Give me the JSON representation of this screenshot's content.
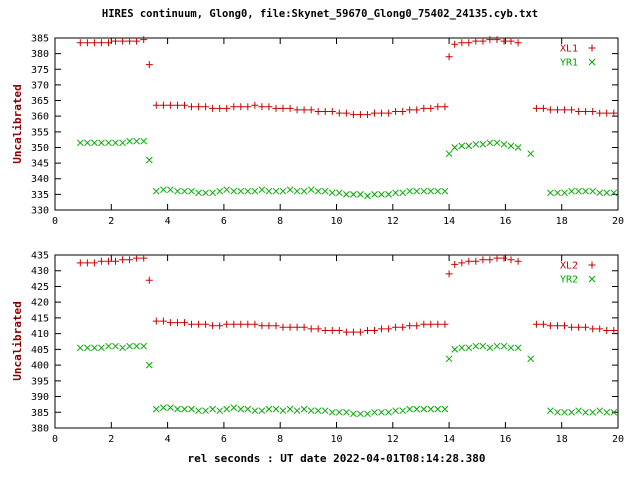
{
  "title": "HIRES continuum, Glong0, file:Skynet_59670_Glong0_75402_24135.cyb.txt",
  "xlabel": "rel seconds : UT date 2022-04-01T08:14:28.380",
  "colors": {
    "series_red": "#cc0000",
    "series_green": "#00aa00",
    "axis_label": "#8b0000",
    "axis_line": "#000000",
    "background": "#ffffff"
  },
  "chart_data": {
    "type": "scatter",
    "grid": false,
    "legend_position": "top-right",
    "panels": [
      {
        "ylabel": "Uncalibrated",
        "ylim": [
          330,
          385
        ],
        "ytick_step": 5,
        "xlim": [
          0,
          20
        ],
        "xtick_step": 2,
        "series": [
          {
            "name": "XL1",
            "marker": "plus",
            "color": "#cc0000",
            "x": [
              0.9,
              1.15,
              1.4,
              1.65,
              1.9,
              2.15,
              2.4,
              2.65,
              2.9,
              3.15,
              3.35,
              3.6,
              3.85,
              4.1,
              4.35,
              4.6,
              4.85,
              5.1,
              5.35,
              5.6,
              5.85,
              6.1,
              6.35,
              6.6,
              6.85,
              7.1,
              7.35,
              7.6,
              7.85,
              8.1,
              8.35,
              8.6,
              8.85,
              9.1,
              9.35,
              9.6,
              9.85,
              10.1,
              10.35,
              10.6,
              10.85,
              11.1,
              11.35,
              11.6,
              11.85,
              12.1,
              12.35,
              12.6,
              12.85,
              13.1,
              13.35,
              13.6,
              13.85,
              14.0,
              14.2,
              14.45,
              14.7,
              14.95,
              15.2,
              15.45,
              15.7,
              15.95,
              16.2,
              16.45,
              17.1,
              17.35,
              17.6,
              17.85,
              18.1,
              18.35,
              18.6,
              18.85,
              19.1,
              19.35,
              19.6,
              19.85
            ],
            "y": [
              383.5,
              383.5,
              383.5,
              383.5,
              383.5,
              384,
              384,
              384,
              384,
              384.5,
              376.5,
              363.5,
              363.5,
              363.5,
              363.5,
              363.5,
              363,
              363,
              363,
              362.5,
              362.5,
              362.5,
              363,
              363,
              363,
              363.5,
              363,
              363,
              362.5,
              362.5,
              362.5,
              362,
              362,
              362,
              361.5,
              361.5,
              361.5,
              361,
              361,
              360.5,
              360.5,
              360.5,
              361,
              361,
              361,
              361.5,
              361.5,
              362,
              362,
              362.5,
              362.5,
              363,
              363,
              379,
              383,
              383.5,
              383.5,
              384,
              384,
              384.5,
              384.5,
              384,
              384,
              383.5,
              362.5,
              362.5,
              362,
              362,
              362,
              362,
              361.5,
              361.5,
              361.5,
              361,
              361,
              361
            ]
          },
          {
            "name": "YR1",
            "marker": "cross",
            "color": "#00aa00",
            "x": [
              0.9,
              1.15,
              1.4,
              1.65,
              1.9,
              2.15,
              2.4,
              2.65,
              2.9,
              3.15,
              3.35,
              3.6,
              3.85,
              4.1,
              4.35,
              4.6,
              4.85,
              5.1,
              5.35,
              5.6,
              5.85,
              6.1,
              6.35,
              6.6,
              6.85,
              7.1,
              7.35,
              7.6,
              7.85,
              8.1,
              8.35,
              8.6,
              8.85,
              9.1,
              9.35,
              9.6,
              9.85,
              10.1,
              10.35,
              10.6,
              10.85,
              11.1,
              11.35,
              11.6,
              11.85,
              12.1,
              12.35,
              12.6,
              12.85,
              13.1,
              13.35,
              13.6,
              13.85,
              14.0,
              14.2,
              14.45,
              14.7,
              14.95,
              15.2,
              15.45,
              15.7,
              15.95,
              16.2,
              16.45,
              16.9,
              17.6,
              17.85,
              18.1,
              18.35,
              18.6,
              18.85,
              19.1,
              19.35,
              19.6,
              19.85
            ],
            "y": [
              351.5,
              351.5,
              351.5,
              351.5,
              351.5,
              351.5,
              351.5,
              352,
              352,
              352,
              346,
              336,
              336.5,
              336.5,
              336,
              336,
              336,
              335.5,
              335.5,
              335.5,
              336,
              336.5,
              336,
              336,
              336,
              336,
              336.5,
              336,
              336,
              336,
              336.5,
              336,
              336,
              336.5,
              336,
              336,
              335.5,
              335.5,
              335,
              335,
              335,
              334.5,
              335,
              335,
              335,
              335.5,
              335.5,
              336,
              336,
              336,
              336,
              336,
              336,
              348,
              350,
              350.5,
              350.5,
              351,
              351,
              351.5,
              351.5,
              351,
              350.5,
              350,
              348,
              335.5,
              335.5,
              335.5,
              336,
              336,
              336,
              336,
              335.5,
              335.5,
              335.5
            ]
          }
        ]
      },
      {
        "ylabel": "Uncalibrated",
        "ylim": [
          380,
          435
        ],
        "ytick_step": 5,
        "xlim": [
          0,
          20
        ],
        "xtick_step": 2,
        "series": [
          {
            "name": "XL2",
            "marker": "plus",
            "color": "#cc0000",
            "x": [
              0.9,
              1.15,
              1.4,
              1.65,
              1.9,
              2.15,
              2.4,
              2.65,
              2.9,
              3.15,
              3.35,
              3.6,
              3.85,
              4.1,
              4.35,
              4.6,
              4.85,
              5.1,
              5.35,
              5.6,
              5.85,
              6.1,
              6.35,
              6.6,
              6.85,
              7.1,
              7.35,
              7.6,
              7.85,
              8.1,
              8.35,
              8.6,
              8.85,
              9.1,
              9.35,
              9.6,
              9.85,
              10.1,
              10.35,
              10.6,
              10.85,
              11.1,
              11.35,
              11.6,
              11.85,
              12.1,
              12.35,
              12.6,
              12.85,
              13.1,
              13.35,
              13.6,
              13.85,
              14.0,
              14.2,
              14.45,
              14.7,
              14.95,
              15.2,
              15.45,
              15.7,
              15.95,
              16.2,
              16.45,
              17.1,
              17.35,
              17.6,
              17.85,
              18.1,
              18.35,
              18.6,
              18.85,
              19.1,
              19.35,
              19.6,
              19.85
            ],
            "y": [
              432.5,
              432.5,
              432.5,
              433,
              433,
              433,
              433.5,
              433.5,
              434,
              434,
              427,
              414,
              414,
              413.5,
              413.5,
              413.5,
              413,
              413,
              413,
              412.5,
              412.5,
              413,
              413,
              413,
              413,
              413,
              412.5,
              412.5,
              412.5,
              412,
              412,
              412,
              412,
              411.5,
              411.5,
              411,
              411,
              411,
              410.5,
              410.5,
              410.5,
              411,
              411,
              411.5,
              411.5,
              412,
              412,
              412.5,
              412.5,
              413,
              413,
              413,
              413,
              429,
              432,
              432.5,
              433,
              433,
              433.5,
              433.5,
              434,
              434,
              433.5,
              433,
              413,
              413,
              412.5,
              412.5,
              412.5,
              412,
              412,
              412,
              411.5,
              411.5,
              411,
              411
            ]
          },
          {
            "name": "YR2",
            "marker": "cross",
            "color": "#00aa00",
            "x": [
              0.9,
              1.15,
              1.4,
              1.65,
              1.9,
              2.15,
              2.4,
              2.65,
              2.9,
              3.15,
              3.35,
              3.6,
              3.85,
              4.1,
              4.35,
              4.6,
              4.85,
              5.1,
              5.35,
              5.6,
              5.85,
              6.1,
              6.35,
              6.6,
              6.85,
              7.1,
              7.35,
              7.6,
              7.85,
              8.1,
              8.35,
              8.6,
              8.85,
              9.1,
              9.35,
              9.6,
              9.85,
              10.1,
              10.35,
              10.6,
              10.85,
              11.1,
              11.35,
              11.6,
              11.85,
              12.1,
              12.35,
              12.6,
              12.85,
              13.1,
              13.35,
              13.6,
              13.85,
              14.0,
              14.2,
              14.45,
              14.7,
              14.95,
              15.2,
              15.45,
              15.7,
              15.95,
              16.2,
              16.45,
              16.9,
              17.6,
              17.85,
              18.1,
              18.35,
              18.6,
              18.85,
              19.1,
              19.35,
              19.6,
              19.85
            ],
            "y": [
              405.5,
              405.5,
              405.5,
              405.5,
              406,
              406,
              405.5,
              406,
              406,
              406,
              400,
              386,
              386.5,
              386.5,
              386,
              386,
              386,
              385.5,
              385.5,
              386,
              385.5,
              386,
              386.5,
              386,
              386,
              385.5,
              385.5,
              386,
              386,
              385.5,
              386,
              385.5,
              386,
              385.5,
              385.5,
              385.5,
              385,
              385,
              385,
              384.5,
              384.5,
              384.5,
              385,
              385,
              385,
              385.5,
              385.5,
              386,
              386,
              386,
              386,
              386,
              386,
              402,
              405,
              405.5,
              405.5,
              406,
              406,
              405.5,
              406,
              406,
              405.5,
              405.5,
              402,
              385.5,
              385,
              385,
              385,
              385.5,
              385,
              385,
              385.5,
              385,
              385
            ]
          }
        ]
      }
    ]
  }
}
